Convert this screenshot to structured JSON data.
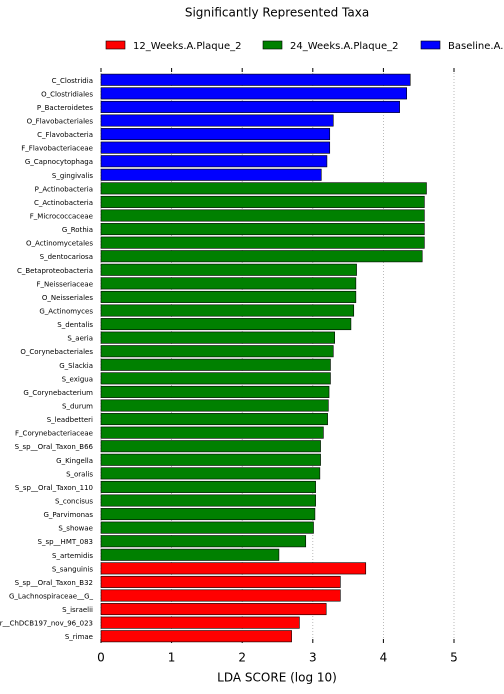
{
  "chart_data": {
    "type": "barh",
    "title": "Significantly Represented Taxa",
    "xlabel": "LDA SCORE (log 10)",
    "categories": [
      "C_Clostridia",
      "O_Clostridiales",
      "P_Bacteroidetes",
      "O_Flavobacteriales",
      "C_Flavobacteria",
      "F_Flavobacteriaceae",
      "G_Capnocytophaga",
      "S_gingivalis",
      "P_Actinobacteria",
      "C_Actinobacteria",
      "F_Micrococcaceae",
      "G_Rothia",
      "O_Actinomycetales",
      "S_dentocariosa",
      "C_Betaproteobacteria",
      "F_Neisseriaceae",
      "O_Neisseriales",
      "G_Actinomyces",
      "S_dentalis",
      "S_aeria",
      "O_Corynebacteriales",
      "G_Slackia",
      "S_exigua",
      "G_Corynebacterium",
      "S_durum",
      "S_leadbetteri",
      "F_Corynebacteriaceae",
      "S_sp__Oral_Taxon_B66",
      "G_Kingella",
      "S_oralis",
      "S_sp__Oral_Taxon_110",
      "S_concisus",
      "G_Parvimonas",
      "S_showae",
      "S_sp__HMT_083",
      "S_artemidis",
      "S_sanguinis",
      "S_sp__Oral_Taxon_B32",
      "G_Lachnospiraceae__G_",
      "S_israelii",
      "r__ChDCB197_nov_96_023",
      "S_rimae"
    ],
    "series": [
      {
        "name": "12_Weeks.A.Plaque_2",
        "color": "#ff0000",
        "values": [
          null,
          null,
          null,
          null,
          null,
          null,
          null,
          null,
          null,
          null,
          null,
          null,
          null,
          null,
          null,
          null,
          null,
          null,
          null,
          null,
          null,
          null,
          null,
          null,
          null,
          null,
          null,
          null,
          null,
          null,
          null,
          null,
          null,
          null,
          null,
          null,
          3.75,
          3.39,
          3.39,
          3.19,
          2.81,
          2.7
        ]
      },
      {
        "name": "24_Weeks.A.Plaque_2",
        "color": "#008000",
        "values": [
          null,
          null,
          null,
          null,
          null,
          null,
          null,
          null,
          4.61,
          4.58,
          4.58,
          4.58,
          4.58,
          4.55,
          3.62,
          3.61,
          3.61,
          3.58,
          3.54,
          3.31,
          3.29,
          3.25,
          3.25,
          3.23,
          3.22,
          3.21,
          3.15,
          3.11,
          3.11,
          3.1,
          3.04,
          3.04,
          3.03,
          3.01,
          2.9,
          2.52,
          null,
          null,
          null,
          null,
          null,
          null
        ]
      },
      {
        "name": "Baseline.A.",
        "color": "#0000ff",
        "values": [
          4.38,
          4.33,
          4.23,
          3.29,
          3.24,
          3.24,
          3.2,
          3.12,
          null,
          null,
          null,
          null,
          null,
          null,
          null,
          null,
          null,
          null,
          null,
          null,
          null,
          null,
          null,
          null,
          null,
          null,
          null,
          null,
          null,
          null,
          null,
          null,
          null,
          null,
          null,
          null,
          null,
          null,
          null,
          null,
          null,
          null
        ]
      }
    ],
    "xlim": [
      0,
      5
    ],
    "xticks": [
      0,
      1,
      2,
      3,
      4,
      5
    ],
    "grid": true
  }
}
